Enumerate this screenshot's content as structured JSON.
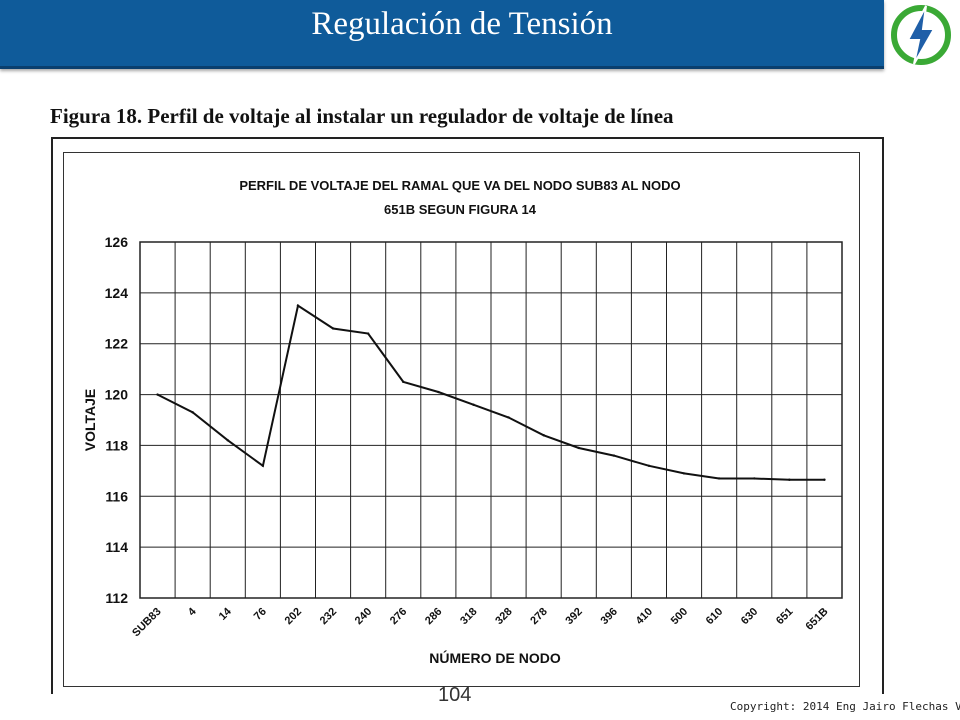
{
  "header": {
    "title": "Regulación de Tensión",
    "logo_icon": "lightning-bolt-icon",
    "colors": {
      "bar": "#0f5b9a",
      "logo_ring": "#3aa935",
      "logo_bolt": "#1f5fa8"
    }
  },
  "figure_caption": "Figura 18. Perfil de voltaje al instalar un regulador de voltaje de línea",
  "footer": {
    "page_number": "104",
    "copyright": "Copyright: 2014 Eng Jairo Flechas V."
  },
  "chart_data": {
    "type": "line",
    "title_lines": [
      "PERFIL DE VOLTAJE DEL RAMAL QUE VA DEL NODO SUB83 AL NODO",
      "651B SEGUN FIGURA 14"
    ],
    "xlabel": "NÚMERO DE NODO",
    "ylabel": "VOLTAJE",
    "ylim": [
      112,
      126
    ],
    "yticks": [
      "112",
      "114",
      "116",
      "118",
      "120",
      "122",
      "124",
      "126"
    ],
    "grid": true,
    "categories": [
      "SUB83",
      "4",
      "14",
      "76",
      "202",
      "232",
      "240",
      "276",
      "286",
      "318",
      "328",
      "278",
      "392",
      "396",
      "410",
      "500",
      "610",
      "630",
      "651",
      "651B"
    ],
    "series": [
      {
        "values": [
          120.0,
          119.3,
          118.2,
          117.2,
          123.5,
          122.6,
          122.4,
          120.5,
          120.1,
          119.6,
          119.1,
          118.4,
          117.9,
          117.6,
          117.2,
          116.9,
          116.7,
          116.7,
          116.65,
          116.65
        ]
      }
    ]
  }
}
